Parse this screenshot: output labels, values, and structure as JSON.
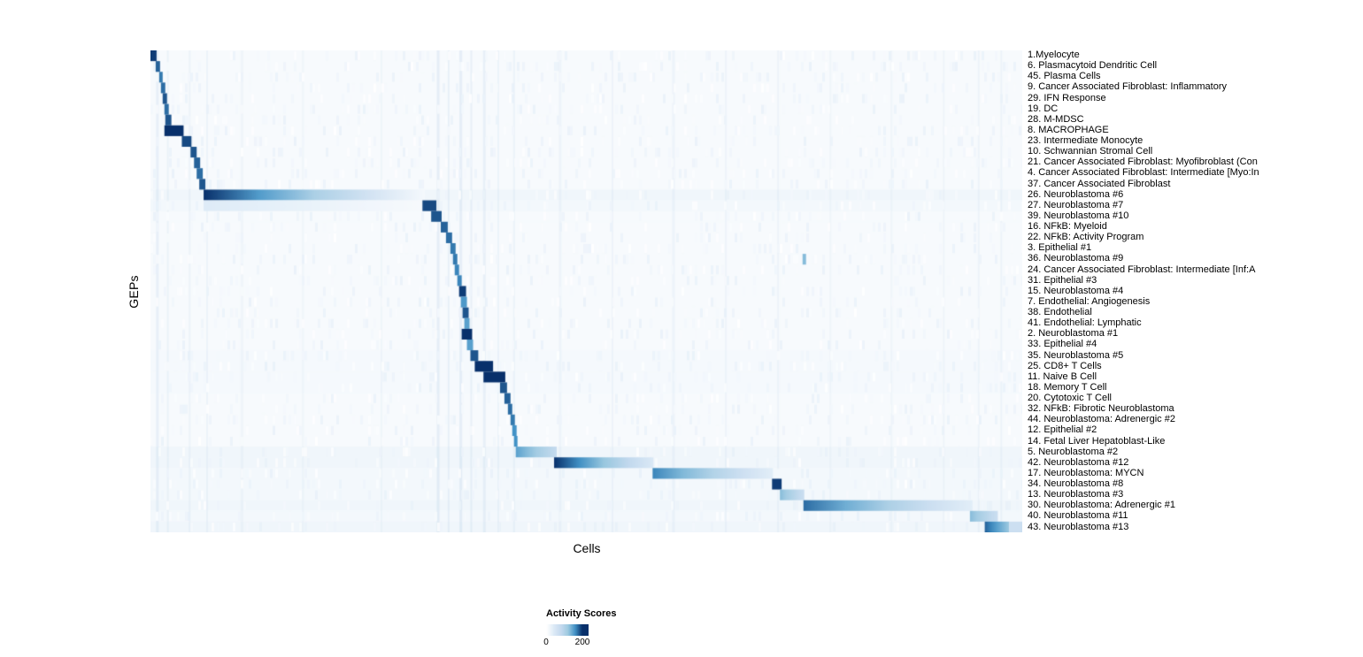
{
  "chart_data": {
    "type": "heatmap",
    "xlabel": "Cells",
    "ylabel": "GEPs",
    "legend": {
      "title": "Activity Scores",
      "min": 0,
      "max": 200
    },
    "background_color": "#f7fafd",
    "color_stops": [
      [
        0,
        "#ffffff"
      ],
      [
        40,
        "#deebf7"
      ],
      [
        80,
        "#c6dbef"
      ],
      [
        120,
        "#9ecae1"
      ],
      [
        160,
        "#4292c6"
      ],
      [
        200,
        "#08306b"
      ]
    ],
    "rows": [
      {
        "label": "1.Myelocyte",
        "blocks": [
          {
            "x0": 0.0,
            "x1": 0.007,
            "v": 195
          }
        ]
      },
      {
        "label": "6. Plasmacytoid Dendritic Cell",
        "blocks": [
          {
            "x0": 0.006,
            "x1": 0.011,
            "v": 180
          }
        ]
      },
      {
        "label": "45. Plasma Cells",
        "blocks": [
          {
            "x0": 0.01,
            "x1": 0.014,
            "v": 170
          }
        ]
      },
      {
        "label": "9. Cancer Associated Fibroblast: Inflammatory",
        "blocks": [
          {
            "x0": 0.012,
            "x1": 0.017,
            "v": 175
          }
        ]
      },
      {
        "label": "29. IFN Response",
        "blocks": [
          {
            "x0": 0.014,
            "x1": 0.019,
            "v": 185
          }
        ]
      },
      {
        "label": "19. DC",
        "blocks": [
          {
            "x0": 0.016,
            "x1": 0.021,
            "v": 175
          }
        ]
      },
      {
        "label": "28. M-MDSC",
        "blocks": [
          {
            "x0": 0.017,
            "x1": 0.024,
            "v": 185
          }
        ]
      },
      {
        "label": "8. MACROPHAGE",
        "blocks": [
          {
            "x0": 0.016,
            "x1": 0.038,
            "v": 200
          }
        ]
      },
      {
        "label": "23. Intermediate Monocyte",
        "blocks": [
          {
            "x0": 0.036,
            "x1": 0.047,
            "v": 190
          }
        ]
      },
      {
        "label": "10. Schwannian Stromal Cell",
        "blocks": [
          {
            "x0": 0.046,
            "x1": 0.053,
            "v": 185
          }
        ]
      },
      {
        "label": "21. Cancer Associated Fibroblast: Myofibroblast (Con",
        "blocks": [
          {
            "x0": 0.05,
            "x1": 0.057,
            "v": 180
          }
        ]
      },
      {
        "label": "4. Cancer Associated Fibroblast: Intermediate [Myo:In",
        "blocks": [
          {
            "x0": 0.053,
            "x1": 0.06,
            "v": 175
          }
        ]
      },
      {
        "label": "37. Cancer Associated Fibroblast",
        "blocks": [
          {
            "x0": 0.056,
            "x1": 0.063,
            "v": 185
          }
        ]
      },
      {
        "label": "26. Neuroblastoma #6",
        "base": 18,
        "blocks": [
          {
            "x0": 0.061,
            "x1": 0.315,
            "v0": 200,
            "v1": 12
          }
        ]
      },
      {
        "label": "27. Neuroblastoma #7",
        "base": 14,
        "blocks": [
          {
            "x0": 0.061,
            "x1": 0.312,
            "v0": 40,
            "v1": 10
          },
          {
            "x0": 0.312,
            "x1": 0.328,
            "v": 190
          }
        ]
      },
      {
        "label": "39. Neuroblastoma #10",
        "base": 10,
        "blocks": [
          {
            "x0": 0.322,
            "x1": 0.334,
            "v": 185
          }
        ]
      },
      {
        "label": "16. NFkB: Myeloid",
        "blocks": [
          {
            "x0": 0.333,
            "x1": 0.341,
            "v": 180
          }
        ]
      },
      {
        "label": "22. NFkB: Activity Program",
        "blocks": [
          {
            "x0": 0.339,
            "x1": 0.346,
            "v": 175
          }
        ]
      },
      {
        "label": "3. Epithelial #1",
        "blocks": [
          {
            "x0": 0.344,
            "x1": 0.35,
            "v": 170
          }
        ]
      },
      {
        "label": "36. Neuroblastoma #9",
        "blocks": [
          {
            "x0": 0.347,
            "x1": 0.352,
            "v": 170
          },
          {
            "x0": 0.748,
            "x1": 0.752,
            "v": 130
          }
        ]
      },
      {
        "label": "24. Cancer Associated Fibroblast: Intermediate [Inf:A",
        "blocks": [
          {
            "x0": 0.349,
            "x1": 0.354,
            "v": 165
          }
        ]
      },
      {
        "label": "31. Epithelial #3",
        "blocks": [
          {
            "x0": 0.352,
            "x1": 0.357,
            "v": 165
          }
        ]
      },
      {
        "label": "15. Neuroblastoma #4",
        "blocks": [
          {
            "x0": 0.354,
            "x1": 0.362,
            "v": 195
          }
        ]
      },
      {
        "label": "7. Endothelial: Angiogenesis",
        "blocks": [
          {
            "x0": 0.356,
            "x1": 0.363,
            "v": 155
          }
        ]
      },
      {
        "label": "38. Endothelial",
        "blocks": [
          {
            "x0": 0.358,
            "x1": 0.365,
            "v": 185
          }
        ]
      },
      {
        "label": "41. Endothelial: Lymphatic",
        "blocks": [
          {
            "x0": 0.36,
            "x1": 0.366,
            "v": 150
          }
        ]
      },
      {
        "label": "2. Neuroblastoma #1",
        "blocks": [
          {
            "x0": 0.357,
            "x1": 0.369,
            "v": 200
          }
        ]
      },
      {
        "label": "33. Epithelial #4",
        "blocks": [
          {
            "x0": 0.363,
            "x1": 0.37,
            "v": 150
          }
        ]
      },
      {
        "label": "35. Neuroblastoma #5",
        "base": 12,
        "blocks": [
          {
            "x0": 0.367,
            "x1": 0.376,
            "v": 185
          }
        ]
      },
      {
        "label": "25. CD8+ T Cells",
        "base": 12,
        "blocks": [
          {
            "x0": 0.372,
            "x1": 0.393,
            "v": 200
          }
        ]
      },
      {
        "label": "11. Naive B Cell",
        "base": 12,
        "blocks": [
          {
            "x0": 0.382,
            "x1": 0.407,
            "v": 200
          }
        ]
      },
      {
        "label": "18. Memory T Cell",
        "base": 12,
        "blocks": [
          {
            "x0": 0.401,
            "x1": 0.409,
            "v": 185
          }
        ]
      },
      {
        "label": "20. Cytotoxic T Cell",
        "blocks": [
          {
            "x0": 0.406,
            "x1": 0.413,
            "v": 180
          }
        ]
      },
      {
        "label": "32. NFkB: Fibrotic Neuroblastoma",
        "blocks": [
          {
            "x0": 0.41,
            "x1": 0.415,
            "v": 175
          }
        ]
      },
      {
        "label": "44. Neuroblastoma: Adrenergic #2",
        "blocks": [
          {
            "x0": 0.413,
            "x1": 0.418,
            "v": 170
          }
        ]
      },
      {
        "label": "12. Epithelial #2",
        "blocks": [
          {
            "x0": 0.415,
            "x1": 0.42,
            "v": 160
          }
        ]
      },
      {
        "label": "14. Fetal Liver Hepatoblast-Like",
        "blocks": [
          {
            "x0": 0.417,
            "x1": 0.421,
            "v": 160
          }
        ]
      },
      {
        "label": "5. Neuroblastoma #2",
        "base": 18,
        "blocks": [
          {
            "x0": 0.419,
            "x1": 0.466,
            "v0": 150,
            "v1": 80
          }
        ]
      },
      {
        "label": "42. Neuroblastoma #12",
        "base": 18,
        "blocks": [
          {
            "x0": 0.463,
            "x1": 0.577,
            "v0": 200,
            "v1": 45
          }
        ]
      },
      {
        "label": "17. Neuroblastoma: MYCN",
        "base": 14,
        "blocks": [
          {
            "x0": 0.576,
            "x1": 0.714,
            "v0": 165,
            "v1": 35
          }
        ]
      },
      {
        "label": "34. Neuroblastoma #8",
        "base": 14,
        "blocks": [
          {
            "x0": 0.713,
            "x1": 0.724,
            "v": 195
          }
        ]
      },
      {
        "label": "13. Neuroblastoma #3",
        "base": 14,
        "blocks": [
          {
            "x0": 0.722,
            "x1": 0.75,
            "v0": 130,
            "v1": 70
          }
        ]
      },
      {
        "label": "30. Neuroblastoma: Adrenergic #1",
        "base": 18,
        "blocks": [
          {
            "x0": 0.749,
            "x1": 0.943,
            "v0": 175,
            "v1": 35
          }
        ]
      },
      {
        "label": "40. Neuroblastoma #11",
        "base": 14,
        "blocks": [
          {
            "x0": 0.94,
            "x1": 0.972,
            "v0": 130,
            "v1": 70
          }
        ]
      },
      {
        "label": "43. Neuroblastoma #13",
        "base": 18,
        "blocks": [
          {
            "x0": 0.957,
            "x1": 0.985,
            "v0": 180,
            "v1": 120
          },
          {
            "x0": 0.985,
            "x1": 1.0,
            "v": 70
          }
        ]
      }
    ],
    "streaks": [
      {
        "x": 0.008,
        "w": 3,
        "a": 0.1
      },
      {
        "x": 0.02,
        "w": 2,
        "a": 0.08
      },
      {
        "x": 0.045,
        "w": 2,
        "a": 0.07
      },
      {
        "x": 0.065,
        "w": 2,
        "a": 0.07
      },
      {
        "x": 0.105,
        "w": 3,
        "a": 0.05
      },
      {
        "x": 0.175,
        "w": 2,
        "a": 0.05
      },
      {
        "x": 0.265,
        "w": 2,
        "a": 0.05
      },
      {
        "x": 0.33,
        "w": 3,
        "a": 0.12
      },
      {
        "x": 0.342,
        "w": 2,
        "a": 0.1
      },
      {
        "x": 0.356,
        "w": 3,
        "a": 0.12
      },
      {
        "x": 0.368,
        "w": 2,
        "a": 0.1
      },
      {
        "x": 0.383,
        "w": 3,
        "a": 0.1
      },
      {
        "x": 0.399,
        "w": 2,
        "a": 0.08
      },
      {
        "x": 0.417,
        "w": 2,
        "a": 0.08
      },
      {
        "x": 0.47,
        "w": 3,
        "a": 0.06
      },
      {
        "x": 0.53,
        "w": 2,
        "a": 0.06
      },
      {
        "x": 0.6,
        "w": 3,
        "a": 0.06
      },
      {
        "x": 0.66,
        "w": 2,
        "a": 0.06
      },
      {
        "x": 0.72,
        "w": 2,
        "a": 0.06
      },
      {
        "x": 0.78,
        "w": 2,
        "a": 0.05
      },
      {
        "x": 0.85,
        "w": 2,
        "a": 0.05
      },
      {
        "x": 0.91,
        "w": 2,
        "a": 0.05
      },
      {
        "x": 0.95,
        "w": 2,
        "a": 0.06
      },
      {
        "x": 0.976,
        "w": 2,
        "a": 0.06
      }
    ],
    "noise": {
      "seed": 20,
      "density": 0.18,
      "max": 30,
      "cell": 3
    }
  }
}
